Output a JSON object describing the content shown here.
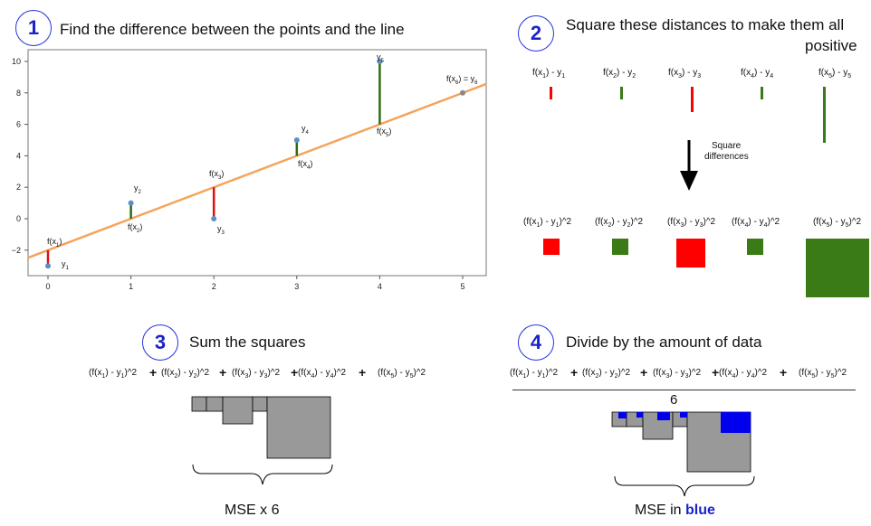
{
  "steps": [
    {
      "number": "1",
      "text": "Find the difference between the points and the line"
    },
    {
      "number": "2",
      "text_line1": "Square these distances to make them all",
      "text_line2": "positive"
    },
    {
      "number": "3",
      "text": "Sum the squares"
    },
    {
      "number": "4",
      "text": "Divide by the amount of data"
    }
  ],
  "plot": {
    "x_ticks": [
      "0",
      "1",
      "2",
      "3",
      "4",
      "5"
    ],
    "y_ticks": [
      "10",
      "8",
      "6",
      "4",
      "2",
      "0",
      "−2"
    ],
    "points": [
      {
        "x": 0,
        "y": -3,
        "fx": -2
      },
      {
        "x": 1,
        "y": 1,
        "fx": 0
      },
      {
        "x": 2,
        "y": 0,
        "fx": 2
      },
      {
        "x": 3,
        "y": 5,
        "fx": 4
      },
      {
        "x": 4,
        "y": 10,
        "fx": 6
      },
      {
        "x": 5,
        "y": 8,
        "fx": 8
      }
    ],
    "line_colors": {
      "fit": "#f5a35c",
      "positive": "#2d6b12",
      "negative": "#dd1111",
      "point": "#5b8fc6"
    }
  },
  "sub_labels": [
    "1",
    "2",
    "3",
    "4",
    "5"
  ],
  "sub_labels_6": "6",
  "diff_caption": "f(x",
  "square_caption_line1": "Square",
  "square_caption_line2": "differences",
  "squared_suffix": "^2",
  "plus": "+",
  "divisor": "6",
  "caption3": "MSE x 6",
  "caption4_prefix": "MSE in ",
  "caption4_emph": "blue",
  "colors": {
    "accent": "#1a22cc",
    "red": "#ff0000",
    "green": "#3a7a17",
    "gray": "#9a9a9a",
    "blue": "#0000ee"
  }
}
